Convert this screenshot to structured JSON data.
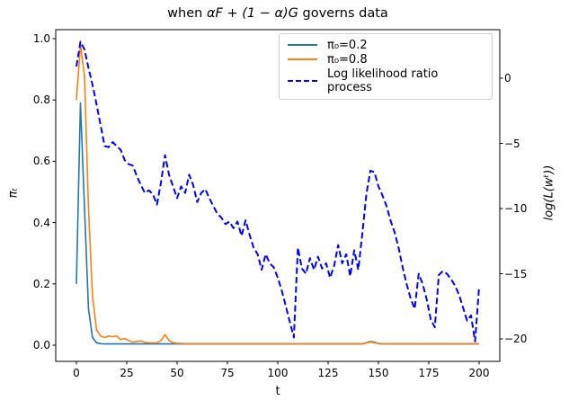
{
  "title": {
    "prefix": "when ",
    "math": "αF + (1 − α)G",
    "suffix": " governs data"
  },
  "axes": {
    "xlabel": "t",
    "ylabel_left": "πₜ",
    "ylabel_right": "log(L(wᵗ))",
    "x_ticks": [
      {
        "label": "0",
        "value": 0
      },
      {
        "label": "25",
        "value": 25
      },
      {
        "label": "50",
        "value": 50
      },
      {
        "label": "75",
        "value": 75
      },
      {
        "label": "100",
        "value": 100
      },
      {
        "label": "125",
        "value": 125
      },
      {
        "label": "150",
        "value": 150
      },
      {
        "label": "175",
        "value": 175
      },
      {
        "label": "200",
        "value": 200
      }
    ],
    "y_ticks_left": [
      {
        "label": "1.0",
        "value": 1.0
      },
      {
        "label": "0.8",
        "value": 0.8
      },
      {
        "label": "0.6",
        "value": 0.6
      },
      {
        "label": "0.4",
        "value": 0.4
      },
      {
        "label": "0.2",
        "value": 0.2
      },
      {
        "label": "0.0",
        "value": 0.0
      }
    ],
    "y_ticks_right": [
      {
        "label": "0",
        "value": 0
      },
      {
        "label": "−5",
        "value": -5
      },
      {
        "label": "−10",
        "value": -10
      },
      {
        "label": "−15",
        "value": -15
      },
      {
        "label": "−20",
        "value": -20
      }
    ]
  },
  "legend": {
    "items": [
      {
        "label": "π₀=0.2",
        "color": "#1f77b4",
        "style": "solid"
      },
      {
        "label": "π₀=0.8",
        "color": "#ff7f0e",
        "style": "solid"
      },
      {
        "label": "Log likelihood ratio process",
        "color": "#0000ff",
        "style": "dashed"
      }
    ]
  },
  "chart_data": {
    "type": "line",
    "title": "when αF + (1 − α)G governs data",
    "xlabel": "t",
    "ylabel_left": "πₜ",
    "ylabel_right": "log(L(wᵗ))",
    "xlim": [
      -10,
      210
    ],
    "ylim_left": [
      -0.05,
      1.03
    ],
    "ylim_right": [
      -21.7,
      3.7
    ],
    "grid": false,
    "legend_position": "upper right",
    "x_start": 0,
    "x_step": 2,
    "series": [
      {
        "name": "π₀=0.2",
        "axis": "left",
        "color": "#1f77b4",
        "style": "solid",
        "values": [
          0.2,
          0.79,
          0.45,
          0.12,
          0.025,
          0.008,
          0.005,
          0.004,
          0.004,
          0.004,
          0.004,
          0.004,
          0.004,
          0.004,
          0.004,
          0.004,
          0.004,
          0.004,
          0.004,
          0.004,
          0.004,
          0.004,
          0.004,
          0.004,
          0.004,
          0.004,
          0.004,
          0.004,
          0.004,
          0.004,
          0.004,
          0.004,
          0.004,
          0.004,
          0.004,
          0.004,
          0.004,
          0.004,
          0.004,
          0.004,
          0.004,
          0.004,
          0.004,
          0.004,
          0.004,
          0.004,
          0.004,
          0.004,
          0.004,
          0.004,
          0.004,
          0.004,
          0.004,
          0.004,
          0.004,
          0.004,
          0.004,
          0.004,
          0.004,
          0.004,
          0.004,
          0.004,
          0.004,
          0.004,
          0.004,
          0.004,
          0.004,
          0.004,
          0.004,
          0.004,
          0.004,
          0.004,
          0.008,
          0.012,
          0.01,
          0.005,
          0.004,
          0.004,
          0.004,
          0.004,
          0.004,
          0.004,
          0.004,
          0.004,
          0.004,
          0.004,
          0.004,
          0.004,
          0.004,
          0.004,
          0.004,
          0.004,
          0.004,
          0.004,
          0.004,
          0.004,
          0.004,
          0.004,
          0.004,
          0.004,
          0.004
        ]
      },
      {
        "name": "π₀=0.8",
        "axis": "left",
        "color": "#ff7f0e",
        "style": "solid",
        "values": [
          0.8,
          0.98,
          0.88,
          0.45,
          0.16,
          0.05,
          0.03,
          0.025,
          0.03,
          0.028,
          0.03,
          0.018,
          0.022,
          0.015,
          0.01,
          0.012,
          0.014,
          0.009,
          0.008,
          0.007,
          0.008,
          0.015,
          0.035,
          0.015,
          0.008,
          0.006,
          0.006,
          0.005,
          0.005,
          0.005,
          0.005,
          0.005,
          0.005,
          0.005,
          0.005,
          0.005,
          0.005,
          0.005,
          0.005,
          0.005,
          0.005,
          0.005,
          0.005,
          0.005,
          0.005,
          0.005,
          0.005,
          0.005,
          0.005,
          0.005,
          0.005,
          0.005,
          0.005,
          0.005,
          0.005,
          0.005,
          0.005,
          0.005,
          0.005,
          0.005,
          0.005,
          0.005,
          0.005,
          0.005,
          0.005,
          0.005,
          0.005,
          0.005,
          0.005,
          0.005,
          0.005,
          0.005,
          0.007,
          0.01,
          0.008,
          0.006,
          0.005,
          0.005,
          0.005,
          0.005,
          0.005,
          0.005,
          0.005,
          0.005,
          0.005,
          0.005,
          0.005,
          0.005,
          0.005,
          0.005,
          0.005,
          0.005,
          0.005,
          0.005,
          0.005,
          0.005,
          0.005,
          0.005,
          0.005,
          0.005,
          0.005
        ]
      },
      {
        "name": "Log likelihood ratio process",
        "axis": "right",
        "color": "#0000ff",
        "style": "dashed",
        "values": [
          0.9,
          2.8,
          2.2,
          0.8,
          -0.5,
          -2.0,
          -3.6,
          -5.2,
          -5.3,
          -4.9,
          -5.2,
          -5.5,
          -6.3,
          -6.6,
          -6.7,
          -7.5,
          -8.2,
          -8.8,
          -8.6,
          -8.9,
          -9.7,
          -8.0,
          -5.9,
          -7.4,
          -8.3,
          -9.2,
          -8.3,
          -8.8,
          -7.4,
          -8.2,
          -9.5,
          -8.8,
          -8.5,
          -9.2,
          -9.8,
          -10.4,
          -10.7,
          -11.2,
          -11.0,
          -11.5,
          -11.0,
          -12.1,
          -10.9,
          -12.0,
          -13.0,
          -13.5,
          -14.7,
          -13.5,
          -14.2,
          -14.5,
          -15.3,
          -16.3,
          -17.5,
          -18.7,
          -19.9,
          -13.0,
          -14.6,
          -15.0,
          -13.8,
          -14.7,
          -13.7,
          -14.6,
          -14.2,
          -15.3,
          -14.4,
          -12.8,
          -14.2,
          -13.5,
          -15.2,
          -13.2,
          -14.7,
          -11.9,
          -8.9,
          -7.1,
          -7.2,
          -8.3,
          -9.0,
          -9.8,
          -10.9,
          -11.8,
          -13.0,
          -14.5,
          -15.8,
          -16.9,
          -17.7,
          -15.0,
          -15.8,
          -17.0,
          -18.5,
          -19.1,
          -15.1,
          -14.8,
          -15.0,
          -15.4,
          -15.9,
          -16.6,
          -17.6,
          -18.6,
          -18.2,
          -20.2,
          -16.0
        ]
      }
    ]
  }
}
